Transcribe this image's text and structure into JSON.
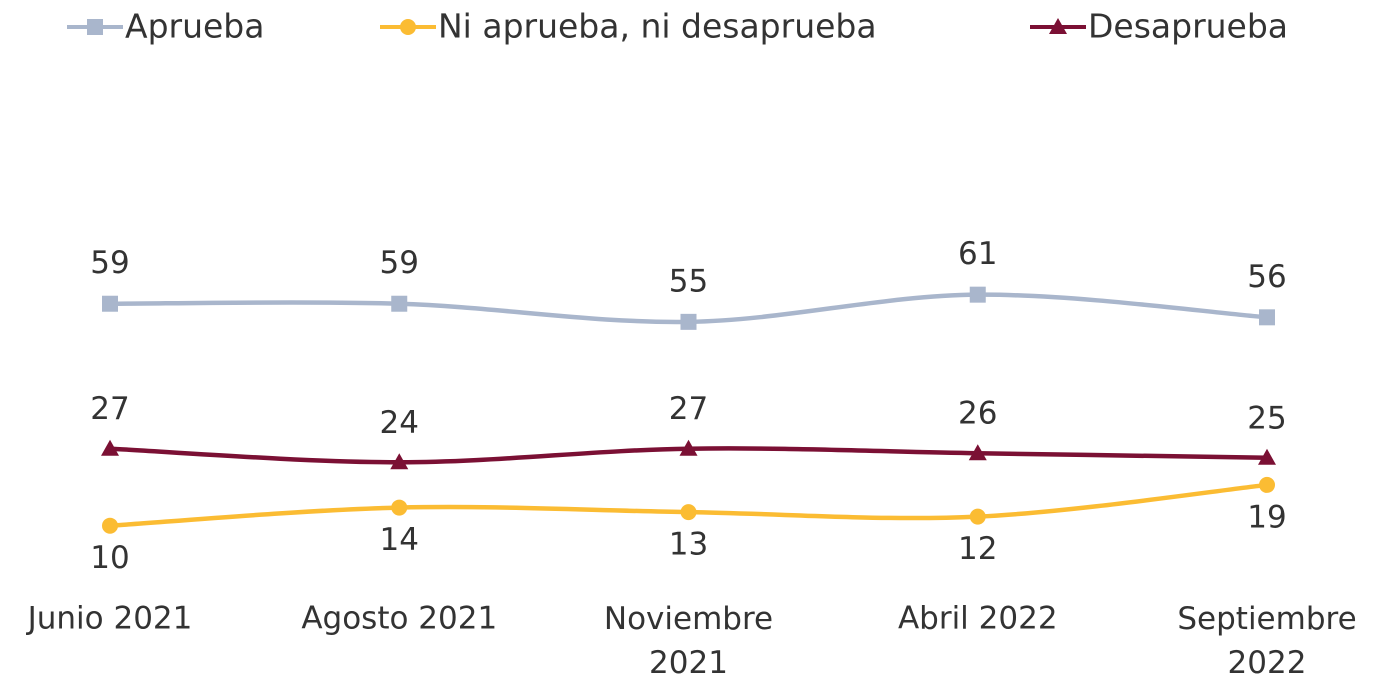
{
  "chart_data": {
    "type": "line",
    "categories": [
      "Junio 2021",
      "Agosto 2021",
      "Noviembre 2021",
      "Abril 2022",
      "Septiembre 2022"
    ],
    "series": [
      {
        "name": "Aprueba",
        "color": "#a9b6cc",
        "marker": "square",
        "values": [
          59,
          59,
          55,
          61,
          56
        ]
      },
      {
        "name": "Ni aprueba, ni desaprueba",
        "color": "#fbbc33",
        "marker": "circle",
        "values": [
          10,
          14,
          13,
          12,
          19
        ]
      },
      {
        "name": "Desaprueba",
        "color": "#7b1034",
        "marker": "triangle",
        "values": [
          27,
          24,
          27,
          26,
          25
        ]
      }
    ]
  }
}
